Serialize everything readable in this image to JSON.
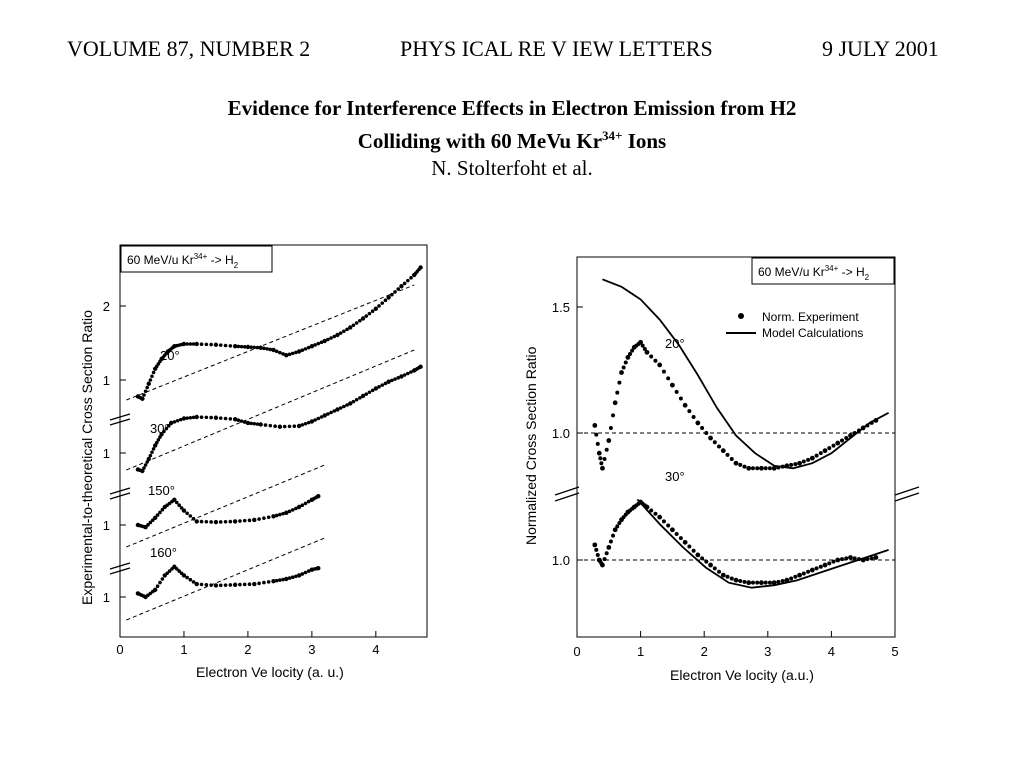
{
  "header": {
    "volume": "VOLUME 87, NUMBER 2",
    "journal": "PHYS ICAL RE V IEW LETTERS",
    "date": "9 JULY 2001"
  },
  "title": {
    "line1": "Evidence for Interference Effects in Electron Emission from H2",
    "line2_pre": "Colliding with 60 MeVu Kr",
    "line2_sup": "34+",
    "line2_post": " Ions"
  },
  "authors": "N. Stolterfoht et al.",
  "chart_data": [
    {
      "type": "scatter",
      "legend_box": "60 MeV/u Kr^34+ -> H2",
      "xlabel": "Electron Velocity (a. u.)",
      "ylabel": "Experimental-to-theoretical Cross Section Ratio",
      "xlim": [
        0,
        4.8
      ],
      "xticks": [
        "0",
        "1",
        "2",
        "3",
        "4"
      ],
      "yticks": [
        "2",
        "1",
        "1",
        "1",
        "1"
      ],
      "series": [
        {
          "name": "20°",
          "x": [
            0.28,
            0.35,
            0.45,
            0.55,
            0.65,
            0.75,
            0.85,
            1.0,
            1.2,
            1.5,
            1.8,
            2.0,
            2.2,
            2.4,
            2.6,
            2.8,
            3.0,
            3.2,
            3.4,
            3.6,
            3.8,
            4.0,
            4.2,
            4.4,
            4.6,
            4.7
          ],
          "y": [
            0.78,
            0.75,
            0.95,
            1.15,
            1.28,
            1.38,
            1.45,
            1.48,
            1.48,
            1.47,
            1.45,
            1.44,
            1.43,
            1.4,
            1.33,
            1.38,
            1.45,
            1.52,
            1.6,
            1.7,
            1.82,
            1.95,
            2.1,
            2.25,
            2.4,
            2.5
          ]
        },
        {
          "name": "30°",
          "x": [
            0.28,
            0.35,
            0.45,
            0.55,
            0.65,
            0.8,
            1.0,
            1.2,
            1.5,
            1.8,
            2.0,
            2.2,
            2.5,
            2.8,
            3.0,
            3.2,
            3.4,
            3.6,
            3.8,
            4.0,
            4.2,
            4.4,
            4.6,
            4.7
          ],
          "y": [
            0.78,
            0.76,
            0.92,
            1.1,
            1.25,
            1.4,
            1.46,
            1.48,
            1.47,
            1.45,
            1.4,
            1.38,
            1.35,
            1.36,
            1.42,
            1.5,
            1.58,
            1.66,
            1.76,
            1.86,
            1.95,
            2.02,
            2.1,
            2.15
          ]
        },
        {
          "name": "150°",
          "x": [
            0.28,
            0.4,
            0.55,
            0.7,
            0.85,
            1.0,
            1.2,
            1.5,
            1.8,
            2.1,
            2.4,
            2.6,
            2.8,
            3.0,
            3.1
          ],
          "y": [
            1.0,
            0.97,
            1.1,
            1.25,
            1.35,
            1.2,
            1.05,
            1.04,
            1.05,
            1.07,
            1.12,
            1.17,
            1.25,
            1.35,
            1.4
          ]
        },
        {
          "name": "160°",
          "x": [
            0.28,
            0.4,
            0.55,
            0.7,
            0.85,
            1.0,
            1.2,
            1.5,
            1.8,
            2.1,
            2.4,
            2.6,
            2.8,
            3.0,
            3.1
          ],
          "y": [
            1.05,
            1.0,
            1.1,
            1.3,
            1.42,
            1.3,
            1.18,
            1.16,
            1.17,
            1.18,
            1.22,
            1.25,
            1.3,
            1.38,
            1.4
          ]
        }
      ]
    },
    {
      "type": "scatter",
      "legend_box": "60 MeV/u Kr^34+ -> H2",
      "legend": [
        "Norm. Experiment",
        "Model Calculations"
      ],
      "xlabel": "Electron Velocity (a.u.)",
      "ylabel": "Normalized Cross Section Ratio",
      "xlim": [
        0,
        5
      ],
      "xticks": [
        "0",
        "1",
        "2",
        "3",
        "4",
        "5"
      ],
      "yticks": [
        "1.5",
        "1.0",
        "1.0"
      ],
      "series": [
        {
          "name": "20°",
          "x": [
            0.28,
            0.35,
            0.4,
            0.5,
            0.6,
            0.7,
            0.8,
            0.9,
            1.0,
            1.1,
            1.3,
            1.5,
            1.7,
            1.9,
            2.1,
            2.3,
            2.5,
            2.7,
            2.9,
            3.1,
            3.3,
            3.5,
            3.7,
            3.9,
            4.1,
            4.3,
            4.5,
            4.7
          ],
          "y": [
            1.03,
            0.92,
            0.86,
            0.97,
            1.12,
            1.24,
            1.3,
            1.34,
            1.36,
            1.32,
            1.27,
            1.19,
            1.11,
            1.04,
            0.98,
            0.93,
            0.88,
            0.86,
            0.86,
            0.86,
            0.87,
            0.88,
            0.9,
            0.93,
            0.96,
            0.99,
            1.02,
            1.05
          ],
          "model": [
            1.61,
            1.58,
            1.53,
            1.45,
            1.35,
            1.23,
            1.1,
            0.99,
            0.92,
            0.87,
            0.86,
            0.88,
            0.92,
            0.98,
            1.04,
            1.08
          ]
        },
        {
          "name": "30°",
          "x": [
            0.28,
            0.35,
            0.4,
            0.5,
            0.6,
            0.7,
            0.8,
            0.9,
            1.0,
            1.1,
            1.3,
            1.5,
            1.7,
            1.9,
            2.1,
            2.3,
            2.5,
            2.7,
            2.9,
            3.1,
            3.3,
            3.5,
            3.7,
            3.9,
            4.1,
            4.3,
            4.5,
            4.7
          ],
          "y": [
            1.06,
            1.0,
            0.98,
            1.05,
            1.12,
            1.16,
            1.19,
            1.21,
            1.23,
            1.21,
            1.17,
            1.12,
            1.07,
            1.02,
            0.98,
            0.94,
            0.92,
            0.91,
            0.91,
            0.91,
            0.92,
            0.94,
            0.96,
            0.98,
            1.0,
            1.01,
            1.0,
            1.01
          ],
          "model": [
            1.24,
            1.14,
            1.05,
            0.97,
            0.91,
            0.89,
            0.9,
            0.92,
            0.95,
            0.98,
            1.01,
            1.04
          ]
        }
      ]
    }
  ],
  "labels": {
    "left_20": "20°",
    "left_30": "30°",
    "left_150": "150°",
    "left_160": "160°",
    "right_20": "20°",
    "right_30": "30°",
    "legend_exp": "Norm. Experiment",
    "legend_model": "Model Calculations"
  }
}
